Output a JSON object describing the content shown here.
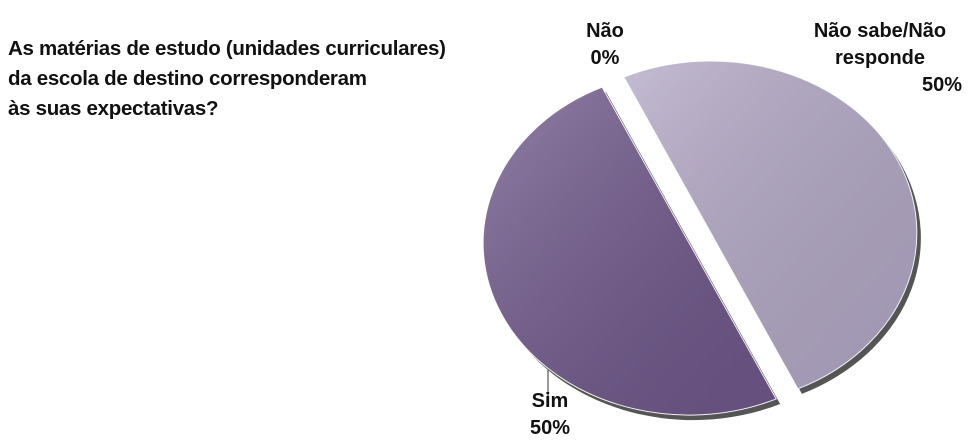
{
  "chart_data": {
    "type": "pie",
    "title": "As matérias de estudo (unidades curriculares)\nda escola de destino corresponderam\nàs suas expectativas?",
    "categories": [
      "Não",
      "Não sabe/Não responde",
      "Sim"
    ],
    "values": [
      0,
      50,
      50
    ],
    "value_labels": [
      "0%",
      "50%",
      "50%"
    ],
    "colors": [
      "#8a7aa6",
      "#b1a6c4",
      "#6e5689"
    ]
  }
}
